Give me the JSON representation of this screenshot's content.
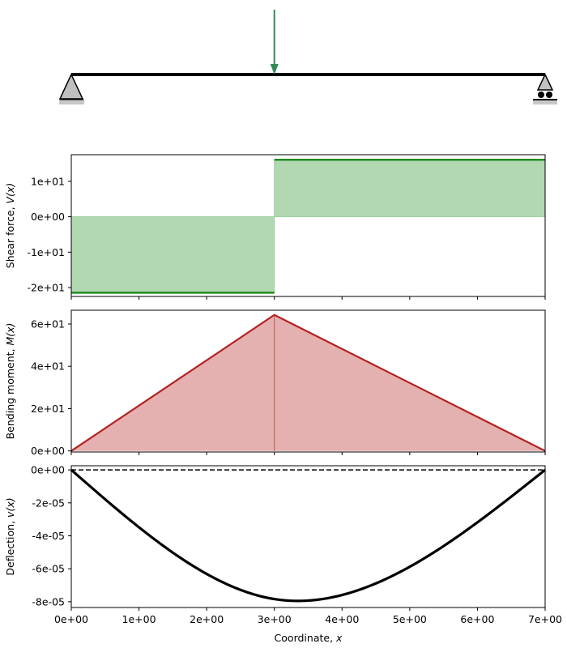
{
  "beam": {
    "span": [
      0,
      7
    ],
    "load_x": 3,
    "left_support": "pin",
    "right_support": "roller",
    "load_color": "#2e8b57"
  },
  "chart_data": [
    {
      "type": "area",
      "ylabel_text": "Shear force, ",
      "ylabel_var": "V(x)",
      "x": [
        0,
        3,
        3,
        7
      ],
      "y": [
        -21.43,
        -21.43,
        16.07,
        16.07
      ],
      "xlim": [
        0,
        7
      ],
      "ylim": [
        -22.5,
        17.5
      ],
      "yticks": [
        {
          "value": 10,
          "label": "1e+01"
        },
        {
          "value": 0,
          "label": "0e+00"
        },
        {
          "value": -10,
          "label": "-1e+01"
        },
        {
          "value": -20,
          "label": "-2e+01"
        }
      ],
      "line_color": "#228b22",
      "fill_color": "#b2d8b2"
    },
    {
      "type": "area",
      "ylabel_text": "Bending moment, ",
      "ylabel_var": "M(x)",
      "x": [
        0,
        3,
        7
      ],
      "y": [
        0,
        64.29,
        0
      ],
      "xlim": [
        0,
        7
      ],
      "ylim": [
        -0.5,
        66.5
      ],
      "yticks": [
        {
          "value": 60,
          "label": "6e+01"
        },
        {
          "value": 40,
          "label": "4e+01"
        },
        {
          "value": 20,
          "label": "2e+01"
        },
        {
          "value": 0,
          "label": "0e+00"
        }
      ],
      "line_color": "#b22222",
      "fill_color": "#e5b0b0"
    },
    {
      "type": "line",
      "ylabel_text": "Deflection, ",
      "ylabel_var": "v(x)",
      "curve": {
        "min_x": 3.33,
        "min_y": -7.95e-05,
        "start": [
          0,
          0
        ],
        "end": [
          7,
          0
        ]
      },
      "baseline_y": 0,
      "xlim": [
        0,
        7
      ],
      "ylim": [
        -8.35e-05,
        2.5e-06
      ],
      "yticks": [
        {
          "value": 0,
          "label": "0e+00"
        },
        {
          "value": -2e-05,
          "label": "-2e-05"
        },
        {
          "value": -4e-05,
          "label": "-4e-05"
        },
        {
          "value": -6e-05,
          "label": "-6e-05"
        },
        {
          "value": -8e-05,
          "label": "-8e-05"
        }
      ],
      "xticks": [
        {
          "value": 0,
          "label": "0e+00"
        },
        {
          "value": 1,
          "label": "1e+00"
        },
        {
          "value": 2,
          "label": "2e+00"
        },
        {
          "value": 3,
          "label": "3e+00"
        },
        {
          "value": 4,
          "label": "4e+00"
        },
        {
          "value": 5,
          "label": "5e+00"
        },
        {
          "value": 6,
          "label": "6e+00"
        },
        {
          "value": 7,
          "label": "7e+00"
        }
      ],
      "xlabel_text": "Coordinate, ",
      "xlabel_var": "x",
      "line_color": "#000000"
    }
  ]
}
